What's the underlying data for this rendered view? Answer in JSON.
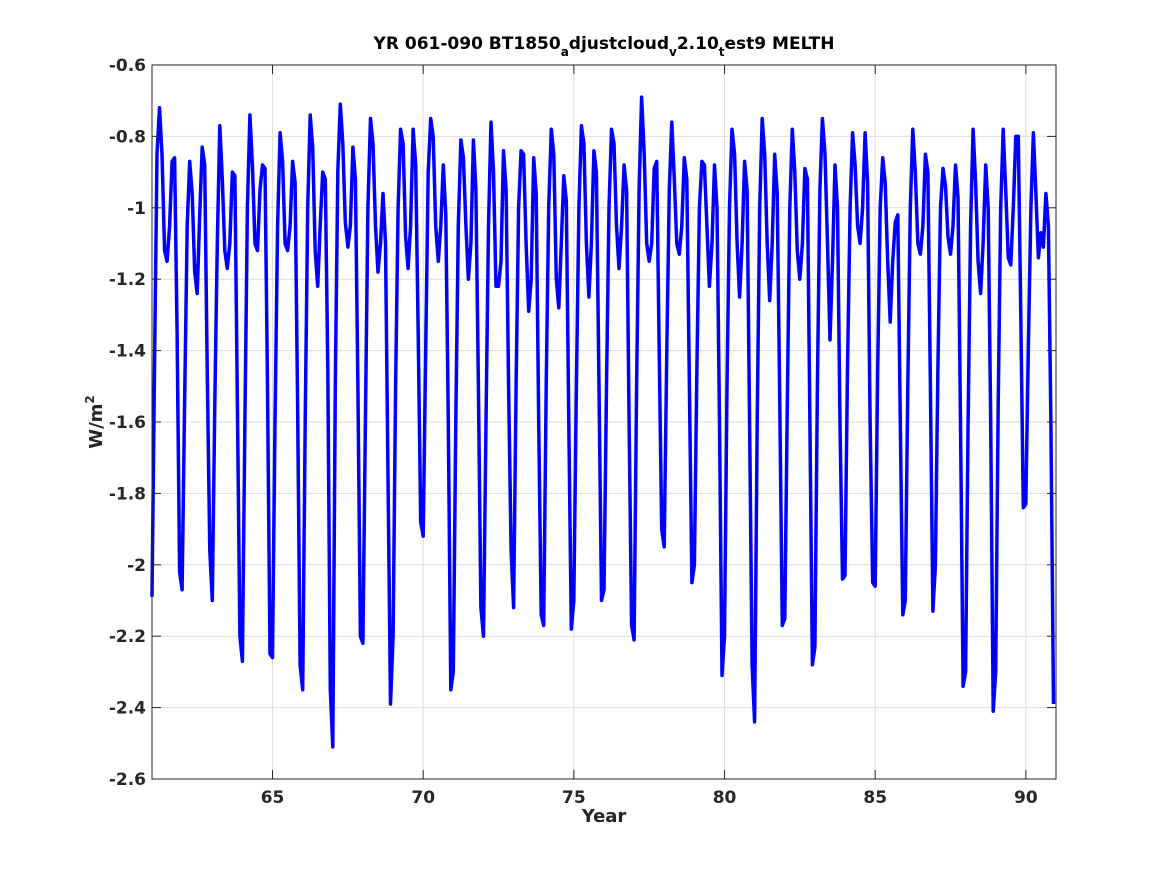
{
  "chart_data": {
    "type": "line",
    "title": {
      "parts": [
        {
          "text": "YR 061-090 BT1850",
          "style": "normal"
        },
        {
          "text": "a",
          "style": "sub"
        },
        {
          "text": "djustcloud",
          "style": "normal"
        },
        {
          "text": "v",
          "style": "sub"
        },
        {
          "text": "2.10",
          "style": "normal"
        },
        {
          "text": "t",
          "style": "sub"
        },
        {
          "text": "est9 MELTH",
          "style": "normal"
        }
      ]
    },
    "xlabel": "Year",
    "ylabel": {
      "base": "W/m",
      "sup": "2"
    },
    "xlim": [
      61,
      91
    ],
    "ylim": [
      -2.6,
      -0.6
    ],
    "xticks": [
      65,
      70,
      75,
      80,
      85,
      90
    ],
    "yticks": [
      -0.6,
      -0.8,
      -1,
      -1.2,
      -1.4,
      -1.6,
      -1.8,
      -2,
      -2.2,
      -2.4,
      -2.6
    ],
    "ytick_labels": [
      "-0.6",
      "-0.8",
      "-1",
      "-1.2",
      "-1.4",
      "-1.6",
      "-1.8",
      "-2",
      "-2.2",
      "-2.4",
      "-2.6"
    ],
    "xtick_labels": [
      "65",
      "70",
      "75",
      "80",
      "85",
      "90"
    ],
    "grid": true,
    "series": [
      {
        "color": "#0000ff",
        "x_start": 61.0,
        "x_step": 0.08333,
        "values": [
          -2.09,
          -1.45,
          -0.85,
          -0.72,
          -0.85,
          -1.12,
          -1.15,
          -1.05,
          -0.87,
          -0.86,
          -1.35,
          -2.02,
          -2.07,
          -1.55,
          -1.05,
          -0.87,
          -0.96,
          -1.18,
          -1.24,
          -1.02,
          -0.83,
          -0.88,
          -1.45,
          -1.96,
          -2.1,
          -1.55,
          -1.1,
          -0.77,
          -0.92,
          -1.12,
          -1.17,
          -1.1,
          -0.9,
          -0.91,
          -1.55,
          -2.2,
          -2.27,
          -1.6,
          -1.0,
          -0.74,
          -0.88,
          -1.1,
          -1.12,
          -0.95,
          -0.88,
          -0.89,
          -1.5,
          -2.25,
          -2.26,
          -1.6,
          -1.05,
          -0.79,
          -0.87,
          -1.1,
          -1.12,
          -1.05,
          -0.87,
          -0.93,
          -1.55,
          -2.28,
          -2.35,
          -1.6,
          -1.0,
          -0.74,
          -0.83,
          -1.12,
          -1.22,
          -1.05,
          -0.9,
          -0.92,
          -1.45,
          -2.35,
          -2.51,
          -1.5,
          -0.9,
          -0.71,
          -0.82,
          -1.04,
          -1.11,
          -1.05,
          -0.83,
          -0.92,
          -1.5,
          -2.2,
          -2.22,
          -1.6,
          -1.0,
          -0.75,
          -0.82,
          -1.05,
          -1.18,
          -1.1,
          -0.96,
          -1.1,
          -1.75,
          -2.39,
          -2.2,
          -1.5,
          -1.0,
          -0.78,
          -0.82,
          -1.08,
          -1.17,
          -1.05,
          -0.78,
          -0.88,
          -1.35,
          -1.88,
          -1.92,
          -1.4,
          -0.9,
          -0.75,
          -0.8,
          -1.05,
          -1.15,
          -1.05,
          -0.88,
          -1.02,
          -1.6,
          -2.35,
          -2.3,
          -1.6,
          -1.05,
          -0.81,
          -0.86,
          -1.05,
          -1.2,
          -1.1,
          -0.81,
          -0.95,
          -1.5,
          -2.12,
          -2.2,
          -1.6,
          -1.05,
          -0.76,
          -0.9,
          -1.22,
          -1.22,
          -1.15,
          -0.84,
          -0.95,
          -1.5,
          -1.96,
          -2.12,
          -1.5,
          -1.0,
          -0.84,
          -0.85,
          -1.1,
          -1.29,
          -1.2,
          -0.86,
          -0.96,
          -1.6,
          -2.14,
          -2.17,
          -1.5,
          -1.0,
          -0.78,
          -0.85,
          -1.2,
          -1.28,
          -1.1,
          -0.91,
          -0.98,
          -1.6,
          -2.18,
          -2.1,
          -1.5,
          -1.0,
          -0.77,
          -0.82,
          -1.1,
          -1.25,
          -1.1,
          -0.84,
          -0.9,
          -1.5,
          -2.1,
          -2.07,
          -1.5,
          -1.0,
          -0.78,
          -0.82,
          -1.05,
          -1.17,
          -1.05,
          -0.88,
          -0.95,
          -1.6,
          -2.17,
          -2.21,
          -1.5,
          -0.95,
          -0.69,
          -0.85,
          -1.1,
          -1.15,
          -1.1,
          -0.89,
          -0.87,
          -1.4,
          -1.9,
          -1.95,
          -1.4,
          -0.95,
          -0.76,
          -0.92,
          -1.1,
          -1.13,
          -1.05,
          -0.86,
          -0.92,
          -1.5,
          -2.05,
          -2.0,
          -1.45,
          -1.0,
          -0.87,
          -0.88,
          -1.05,
          -1.22,
          -1.1,
          -0.88,
          -1.0,
          -1.6,
          -2.31,
          -2.2,
          -1.5,
          -1.0,
          -0.78,
          -0.85,
          -1.1,
          -1.25,
          -1.1,
          -0.87,
          -0.95,
          -1.6,
          -2.28,
          -2.44,
          -1.6,
          -1.0,
          -0.75,
          -0.85,
          -1.1,
          -1.26,
          -1.1,
          -0.85,
          -0.96,
          -1.55,
          -2.17,
          -2.15,
          -1.55,
          -1.0,
          -0.78,
          -0.9,
          -1.12,
          -1.2,
          -1.1,
          -0.89,
          -0.92,
          -1.6,
          -2.28,
          -2.23,
          -1.5,
          -0.95,
          -0.75,
          -0.85,
          -1.1,
          -1.37,
          -1.15,
          -0.88,
          -1.0,
          -1.6,
          -2.04,
          -2.03,
          -1.45,
          -1.0,
          -0.79,
          -0.88,
          -1.05,
          -1.1,
          -1.0,
          -0.79,
          -0.93,
          -1.6,
          -2.05,
          -2.06,
          -1.45,
          -1.0,
          -0.86,
          -0.93,
          -1.15,
          -1.32,
          -1.15,
          -1.04,
          -1.02,
          -1.6,
          -2.14,
          -2.1,
          -1.5,
          -1.0,
          -0.78,
          -0.9,
          -1.1,
          -1.13,
          -1.05,
          -0.85,
          -0.9,
          -1.5,
          -2.13,
          -2.0,
          -1.45,
          -1.0,
          -0.89,
          -0.94,
          -1.08,
          -1.13,
          -1.05,
          -0.88,
          -0.97,
          -1.6,
          -2.34,
          -2.3,
          -1.6,
          -1.05,
          -0.78,
          -0.93,
          -1.15,
          -1.24,
          -1.1,
          -0.88,
          -1.0,
          -1.6,
          -2.41,
          -2.3,
          -1.55,
          -1.0,
          -0.78,
          -0.95,
          -1.14,
          -1.16,
          -1.0,
          -0.8,
          -0.8,
          -1.3,
          -1.84,
          -1.83,
          -1.4,
          -1.0,
          -0.79,
          -0.96,
          -1.14,
          -1.07,
          -1.11,
          -0.96,
          -1.05,
          -1.6,
          -2.39
        ]
      }
    ]
  }
}
